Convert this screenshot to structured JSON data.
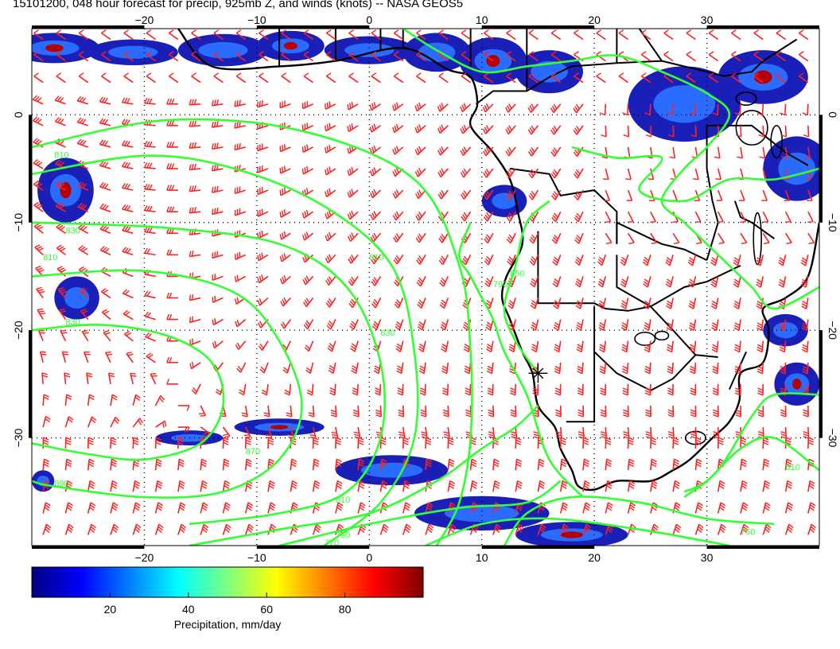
{
  "title": "15101200, 048 hour forecast for precip, 925mb Z, and winds (knots) -- NASA GEOS5",
  "map": {
    "lon_range": [
      -30,
      40
    ],
    "lat_range": [
      -40,
      8
    ],
    "lon_ticks": [
      -20,
      -10,
      0,
      10,
      20,
      30
    ],
    "lat_ticks": [
      0,
      -10,
      -20,
      -30
    ],
    "lon_tick_labels": [
      "−20",
      "−10",
      "0",
      "10",
      "20",
      "30"
    ],
    "lat_tick_labels": [
      "0",
      "−10",
      "−20",
      "−30"
    ],
    "gridlines": "dotted",
    "marker": {
      "lon": 15,
      "lat": -24,
      "symbol": "star"
    }
  },
  "contours": {
    "field": "925mb Z",
    "color": "#33ff33",
    "labels": [
      "810",
      "830",
      "810",
      "830",
      "810",
      "830",
      "870",
      "890",
      "810",
      "790",
      "770",
      "790",
      "850",
      "750",
      "810"
    ]
  },
  "winds": {
    "units": "knots",
    "color": "#ff2020"
  },
  "colorbar": {
    "label": "Precipitation, mm/day",
    "ticks": [
      "20",
      "40",
      "60",
      "80"
    ],
    "tick_values": [
      20,
      40,
      60,
      80
    ],
    "range": [
      0,
      100
    ],
    "colors": [
      "#00007f",
      "#0000ff",
      "#007fff",
      "#00ffff",
      "#7fff7f",
      "#ffff00",
      "#ff7f00",
      "#ff0000",
      "#7f0000"
    ]
  }
}
